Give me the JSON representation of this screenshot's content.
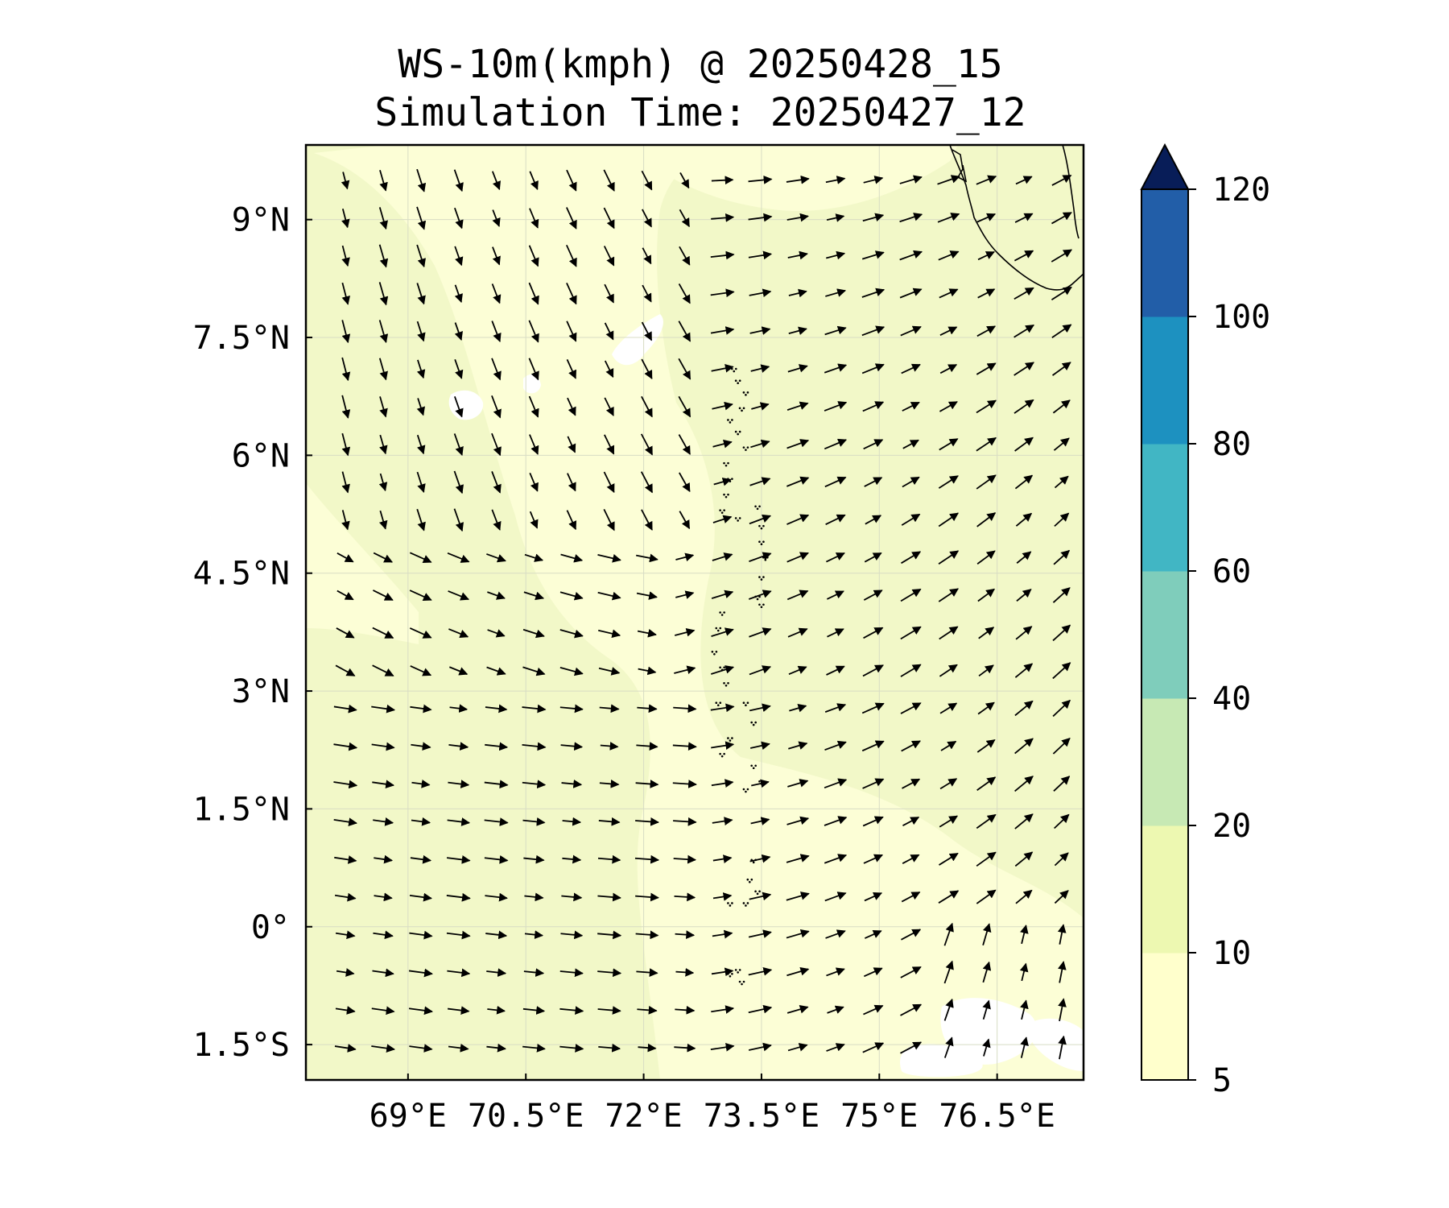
{
  "figure": {
    "title": "WS-10m(kmph) @ 20250428_15",
    "subtitle": "Simulation Time: 20250427_12"
  },
  "map": {
    "extent": {
      "lon": [
        67.7,
        77.6
      ],
      "lat": [
        -1.95,
        9.95
      ]
    },
    "background_color": "#f2f8c8",
    "coastline_color": "#000000",
    "lon_ticks": [
      69,
      70.5,
      72,
      73.5,
      75,
      76.5
    ],
    "lon_tick_labels": [
      "69°E",
      "70.5°E",
      "72°E",
      "73.5°E",
      "75°E",
      "76.5°E"
    ],
    "lat_ticks": [
      9,
      7.5,
      6,
      4.5,
      3,
      1.5,
      0,
      -1.5
    ],
    "lat_tick_labels": [
      "9°N",
      "7.5°N",
      "6°N",
      "4.5°N",
      "3°N",
      "1.5°N",
      "0°",
      "1.5°S"
    ],
    "gridlines": true
  },
  "colorbar": {
    "levels": [
      5,
      10,
      20,
      40,
      60,
      80,
      100,
      120
    ],
    "tick_labels": [
      "5",
      "10",
      "20",
      "40",
      "60",
      "80",
      "100",
      "120"
    ],
    "colors": [
      "#ffffcc",
      "#edf8b1",
      "#c7e9b4",
      "#7fcdbb",
      "#41b6c4",
      "#1d91c0",
      "#225ea8",
      "#0c2c84"
    ],
    "extend": "max",
    "extend_color": "#081d58"
  },
  "wind": {
    "grid_lon_start": 68.2,
    "grid_lon_step": 0.48,
    "grid_lon_count": 20,
    "grid_lat_start": 9.5,
    "grid_lat_step": -0.48,
    "grid_lat_count": 24
  }
}
